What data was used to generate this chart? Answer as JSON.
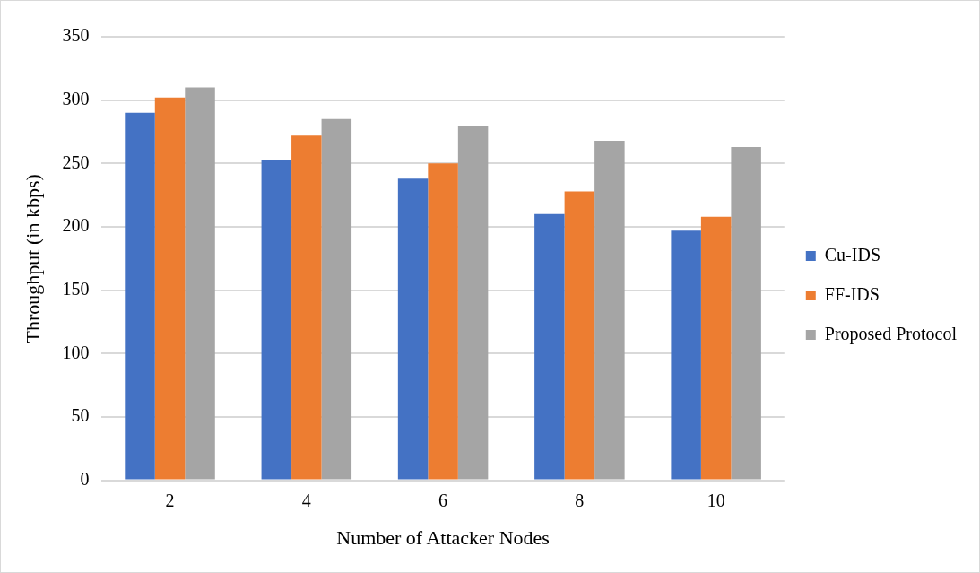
{
  "chart_data": {
    "type": "bar",
    "xlabel": "Number of Attacker Nodes",
    "ylabel": "Throughput (in kbps)",
    "categories": [
      "2",
      "4",
      "6",
      "8",
      "10"
    ],
    "series": [
      {
        "name": "Cu-IDS",
        "color": "#4472c4",
        "values": [
          290,
          253,
          238,
          210,
          197
        ]
      },
      {
        "name": "FF-IDS",
        "color": "#ed7d31",
        "values": [
          302,
          272,
          250,
          228,
          208
        ]
      },
      {
        "name": "Proposed Protocol",
        "color": "#a5a5a5",
        "values": [
          310,
          285,
          280,
          268,
          263
        ]
      }
    ],
    "ylim": [
      0,
      350
    ],
    "yticks": [
      0,
      50,
      100,
      150,
      200,
      250,
      300,
      350
    ],
    "grid": "y",
    "legend": "right"
  }
}
